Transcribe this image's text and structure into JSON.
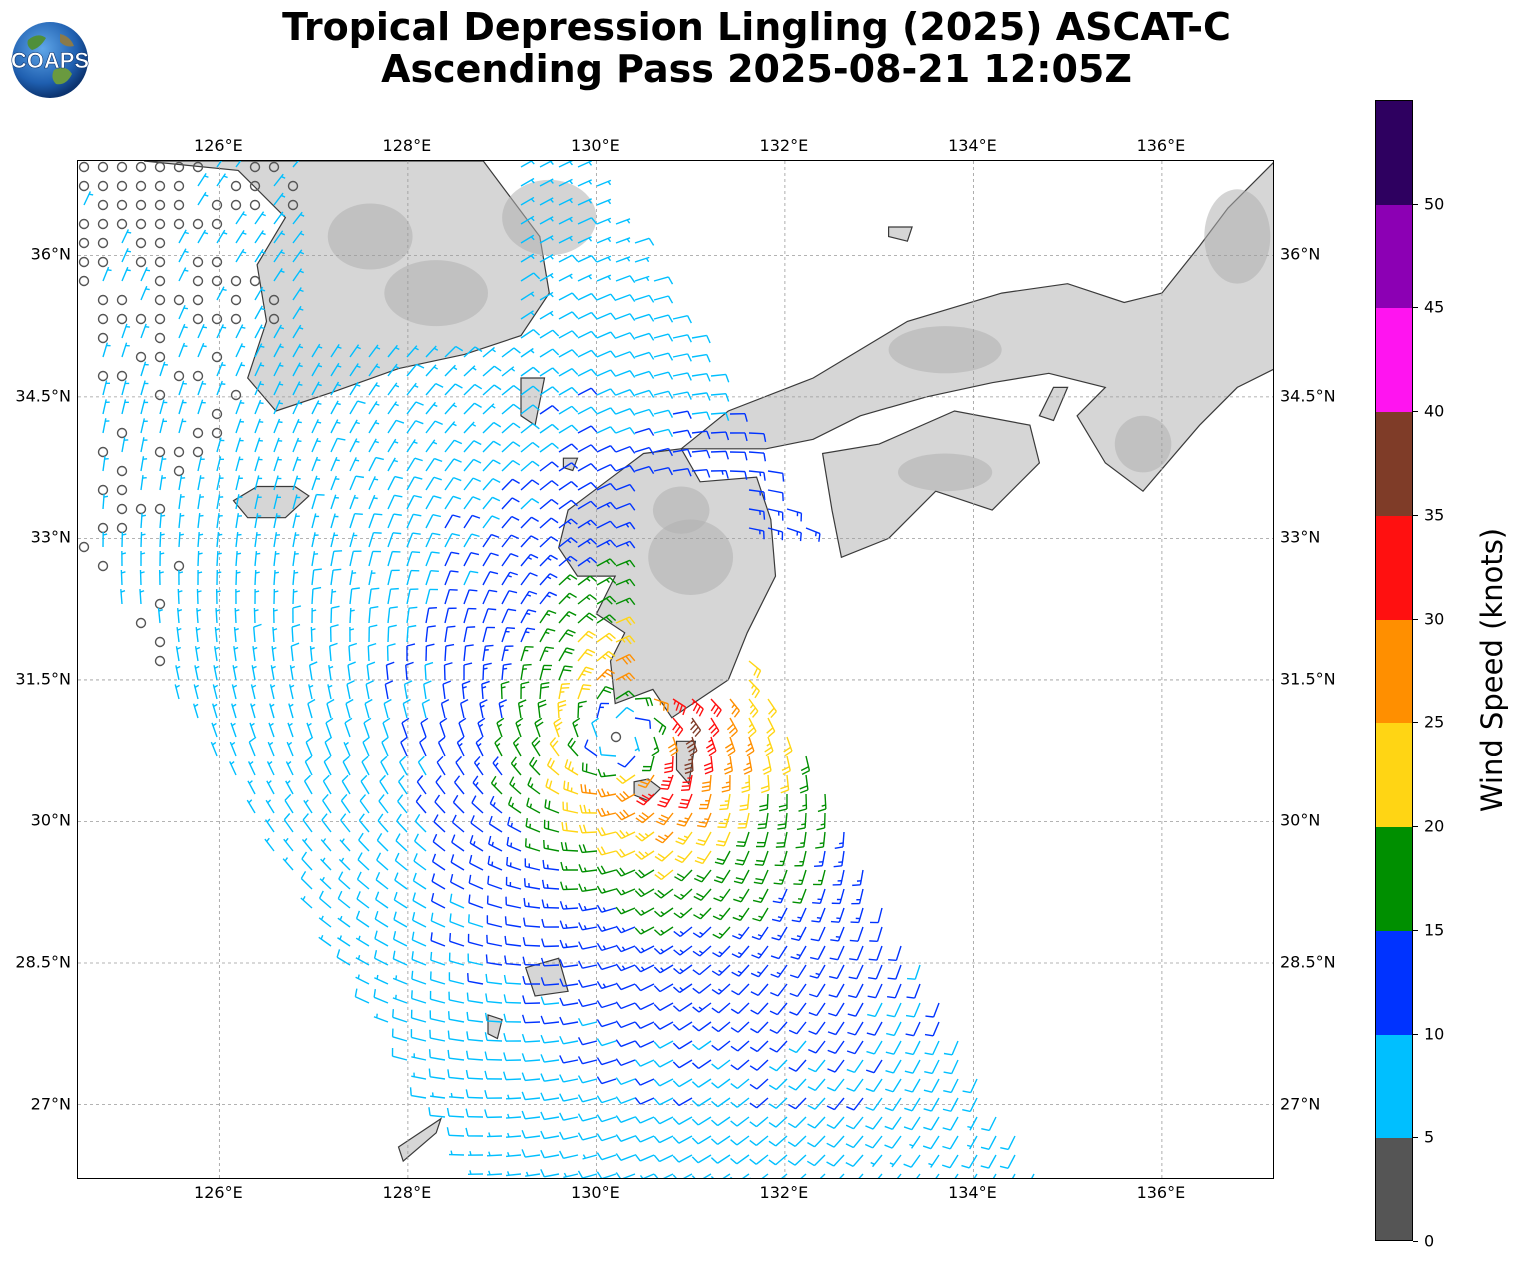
{
  "title": {
    "line1": "Tropical Depression Lingling (2025) ASCAT-C",
    "line2": "Ascending Pass 2025-08-21 12:05Z"
  },
  "logo": {
    "text": "COAPS"
  },
  "map": {
    "projection": "equirectangular",
    "lon_range": [
      124.5,
      137.2
    ],
    "lat_range": [
      26.2,
      37.0
    ],
    "gridlines": true,
    "lon_ticks": [
      {
        "value": 126,
        "label": "126°E"
      },
      {
        "value": 128,
        "label": "128°E"
      },
      {
        "value": 130,
        "label": "130°E"
      },
      {
        "value": 132,
        "label": "132°E"
      },
      {
        "value": 134,
        "label": "134°E"
      },
      {
        "value": 136,
        "label": "136°E"
      }
    ],
    "lat_ticks": [
      {
        "value": 36,
        "label": "36°N"
      },
      {
        "value": 34.5,
        "label": "34.5°N"
      },
      {
        "value": 33,
        "label": "33°N"
      },
      {
        "value": 31.5,
        "label": "31.5°N"
      },
      {
        "value": 30,
        "label": "30°N"
      },
      {
        "value": 28.5,
        "label": "28.5°N"
      },
      {
        "value": 27,
        "label": "27°N"
      }
    ],
    "land_fill": "#d6d6d6",
    "coast_color": "#3a3a3a"
  },
  "wind_field": {
    "center": {
      "lon": 130.3,
      "lat": 30.9
    },
    "max_speed_kt": 31,
    "radius_of_max_wind_deg": 0.7,
    "swath_edges_note_shown": false
  },
  "colorbar": {
    "title": "Wind Speed (knots)",
    "min": 0,
    "max": 55,
    "ticks": [
      0,
      5,
      10,
      15,
      20,
      25,
      30,
      35,
      40,
      45,
      50
    ],
    "bins": [
      {
        "from": 0,
        "to": 5,
        "color": "#555555"
      },
      {
        "from": 5,
        "to": 10,
        "color": "#00bfff"
      },
      {
        "from": 10,
        "to": 15,
        "color": "#0033ff"
      },
      {
        "from": 15,
        "to": 20,
        "color": "#008f00"
      },
      {
        "from": 20,
        "to": 25,
        "color": "#ffd514"
      },
      {
        "from": 25,
        "to": 30,
        "color": "#ff8f00"
      },
      {
        "from": 30,
        "to": 35,
        "color": "#ff1010"
      },
      {
        "from": 35,
        "to": 40,
        "color": "#7f3c28"
      },
      {
        "from": 40,
        "to": 45,
        "color": "#ff14f0"
      },
      {
        "from": 45,
        "to": 50,
        "color": "#8c00b4"
      },
      {
        "from": 50,
        "to": 55,
        "color": "#2e0060"
      }
    ]
  }
}
